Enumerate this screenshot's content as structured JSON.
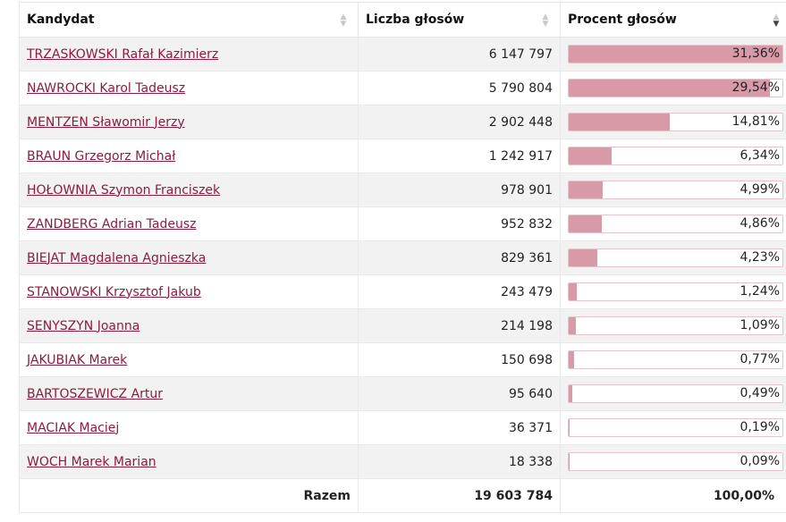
{
  "table": {
    "headers": {
      "candidate": "Kandydat",
      "votes": "Liczba głosów",
      "percent": "Procent głosów"
    },
    "rows": [
      {
        "name": "TRZASKOWSKI Rafał Kazimierz",
        "votes": "6 147 797",
        "percent": "31,36%",
        "share": 31.36
      },
      {
        "name": "NAWROCKI Karol Tadeusz",
        "votes": "5 790 804",
        "percent": "29,54%",
        "share": 29.54
      },
      {
        "name": "MENTZEN Sławomir Jerzy",
        "votes": "2 902 448",
        "percent": "14,81%",
        "share": 14.81
      },
      {
        "name": "BRAUN Grzegorz Michał",
        "votes": "1 242 917",
        "percent": "6,34%",
        "share": 6.34
      },
      {
        "name": "HOŁOWNIA Szymon Franciszek",
        "votes": "978 901",
        "percent": "4,99%",
        "share": 4.99
      },
      {
        "name": "ZANDBERG Adrian Tadeusz",
        "votes": "952 832",
        "percent": "4,86%",
        "share": 4.86
      },
      {
        "name": "BIEJAT Magdalena Agnieszka",
        "votes": "829 361",
        "percent": "4,23%",
        "share": 4.23
      },
      {
        "name": "STANOWSKI Krzysztof Jakub",
        "votes": "243 479",
        "percent": "1,24%",
        "share": 1.24
      },
      {
        "name": "SENYSZYN Joanna",
        "votes": "214 198",
        "percent": "1,09%",
        "share": 1.09
      },
      {
        "name": "JAKUBIAK Marek",
        "votes": "150 698",
        "percent": "0,77%",
        "share": 0.77
      },
      {
        "name": "BARTOSZEWICZ Artur",
        "votes": "95 640",
        "percent": "0,49%",
        "share": 0.49
      },
      {
        "name": "MACIAK Maciej",
        "votes": "36 371",
        "percent": "0,19%",
        "share": 0.19
      },
      {
        "name": "WOCH Marek Marian",
        "votes": "18 338",
        "percent": "0,09%",
        "share": 0.09
      }
    ],
    "total": {
      "label": "Razem",
      "votes": "19 603 784",
      "percent": "100,00%"
    },
    "bar_scale_max": 31.36,
    "colors": {
      "link": "#8e1b3e",
      "bar_fill": "#d99aa8",
      "bar_border": "#e4c4cb",
      "row_alt": "#f2f2f2"
    }
  }
}
